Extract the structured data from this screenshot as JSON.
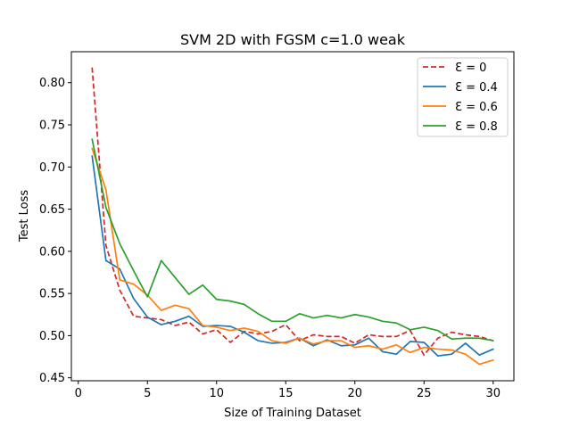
{
  "chart_data": {
    "type": "line",
    "title": "SVM 2D with FGSM c=1.0 weak",
    "xlabel": "Size of Training Dataset",
    "ylabel": "Test Loss",
    "xlim": [
      -0.5,
      31.5
    ],
    "ylim": [
      0.4465,
      0.8367
    ],
    "xticks": [
      0,
      5,
      10,
      15,
      20,
      25,
      30
    ],
    "xtick_labels": [
      "0",
      "5",
      "10",
      "15",
      "20",
      "25",
      "30"
    ],
    "yticks": [
      0.45,
      0.5,
      0.55,
      0.6,
      0.65,
      0.7,
      0.75,
      0.8
    ],
    "ytick_labels": [
      "0.45",
      "0.50",
      "0.55",
      "0.60",
      "0.65",
      "0.70",
      "0.75",
      "0.80"
    ],
    "grid": false,
    "legend_position": "top-right",
    "x": [
      1,
      2,
      3,
      4,
      5,
      6,
      7,
      8,
      9,
      10,
      11,
      12,
      13,
      14,
      15,
      16,
      17,
      18,
      19,
      20,
      21,
      22,
      23,
      24,
      25,
      26,
      27,
      28,
      29,
      30
    ],
    "series": [
      {
        "name": "Ɛ = 0",
        "color": "#d62728",
        "dashed": true,
        "values": [
          0.818,
          0.607,
          0.554,
          0.523,
          0.521,
          0.519,
          0.512,
          0.516,
          0.502,
          0.507,
          0.492,
          0.505,
          0.502,
          0.505,
          0.513,
          0.494,
          0.501,
          0.499,
          0.499,
          0.491,
          0.501,
          0.499,
          0.499,
          0.506,
          0.477,
          0.497,
          0.504,
          0.501,
          0.499,
          0.494
        ]
      },
      {
        "name": "Ɛ = 0.4",
        "color": "#1f77b4",
        "dashed": false,
        "values": [
          0.713,
          0.589,
          0.579,
          0.544,
          0.522,
          0.513,
          0.517,
          0.523,
          0.511,
          0.512,
          0.511,
          0.504,
          0.494,
          0.491,
          0.492,
          0.497,
          0.488,
          0.495,
          0.488,
          0.489,
          0.497,
          0.481,
          0.478,
          0.493,
          0.492,
          0.476,
          0.478,
          0.491,
          0.477,
          0.484
        ]
      },
      {
        "name": "Ɛ = 0.6",
        "color": "#ff7f0e",
        "dashed": false,
        "values": [
          0.722,
          0.673,
          0.566,
          0.561,
          0.548,
          0.53,
          0.536,
          0.532,
          0.512,
          0.51,
          0.506,
          0.509,
          0.505,
          0.494,
          0.491,
          0.497,
          0.49,
          0.494,
          0.494,
          0.486,
          0.488,
          0.484,
          0.489,
          0.48,
          0.486,
          0.484,
          0.483,
          0.478,
          0.466,
          0.471
        ]
      },
      {
        "name": "Ɛ = 0.8",
        "color": "#2ca02c",
        "dashed": false,
        "values": [
          0.733,
          0.652,
          0.609,
          0.577,
          0.546,
          0.589,
          0.569,
          0.549,
          0.56,
          0.543,
          0.541,
          0.537,
          0.526,
          0.517,
          0.517,
          0.526,
          0.521,
          0.524,
          0.521,
          0.525,
          0.522,
          0.517,
          0.515,
          0.507,
          0.51,
          0.506,
          0.496,
          0.497,
          0.497,
          0.494
        ]
      }
    ]
  }
}
